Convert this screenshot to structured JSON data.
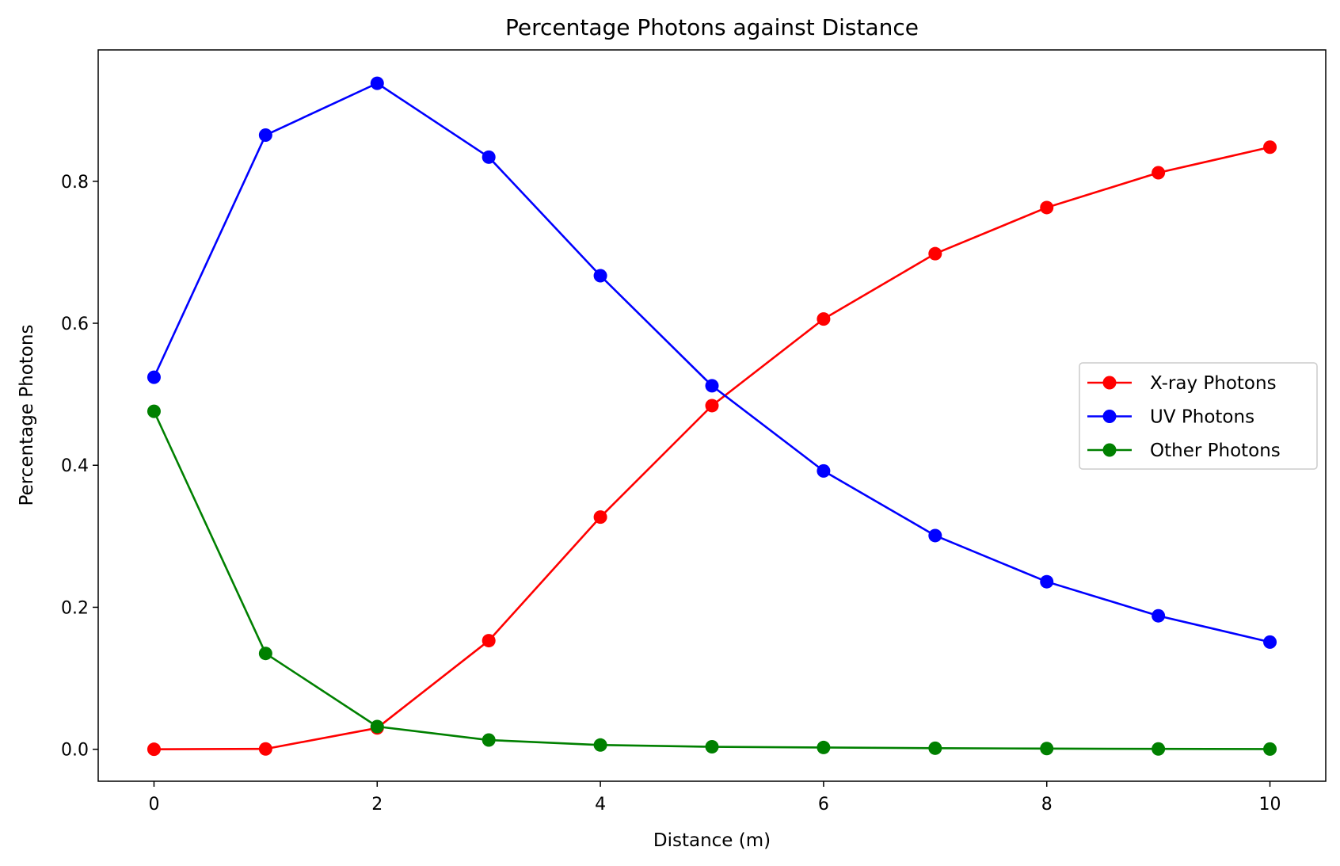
{
  "chart_data": {
    "type": "line",
    "title": "Percentage Photons against Distance",
    "xlabel": "Distance (m)",
    "ylabel": "Percentage Photons",
    "x": [
      0,
      1,
      2,
      3,
      4,
      5,
      6,
      7,
      8,
      9,
      10
    ],
    "xlim": [
      -0.5,
      10.5
    ],
    "ylim": [
      -0.045,
      0.985
    ],
    "xticks": [
      0,
      2,
      4,
      6,
      8,
      10
    ],
    "yticks": [
      0.0,
      0.2,
      0.4,
      0.6,
      0.8
    ],
    "xtick_labels": [
      "0",
      "2",
      "4",
      "6",
      "8",
      "10"
    ],
    "ytick_labels": [
      "0.0",
      "0.2",
      "0.4",
      "0.6",
      "0.8"
    ],
    "grid": false,
    "legend_position": "center-right",
    "series": [
      {
        "name": "X-ray Photons",
        "color": "#ff0000",
        "marker": "circle",
        "values": [
          0.0,
          0.0005,
          0.03,
          0.153,
          0.327,
          0.484,
          0.606,
          0.698,
          0.763,
          0.812,
          0.848
        ]
      },
      {
        "name": "UV Photons",
        "color": "#0000ff",
        "marker": "circle",
        "values": [
          0.524,
          0.865,
          0.938,
          0.834,
          0.667,
          0.512,
          0.392,
          0.301,
          0.236,
          0.188,
          0.151
        ]
      },
      {
        "name": "Other Photons",
        "color": "#008000",
        "marker": "circle",
        "values": [
          0.476,
          0.135,
          0.032,
          0.013,
          0.006,
          0.0035,
          0.0025,
          0.0015,
          0.001,
          0.0005,
          0.0003
        ]
      }
    ]
  }
}
